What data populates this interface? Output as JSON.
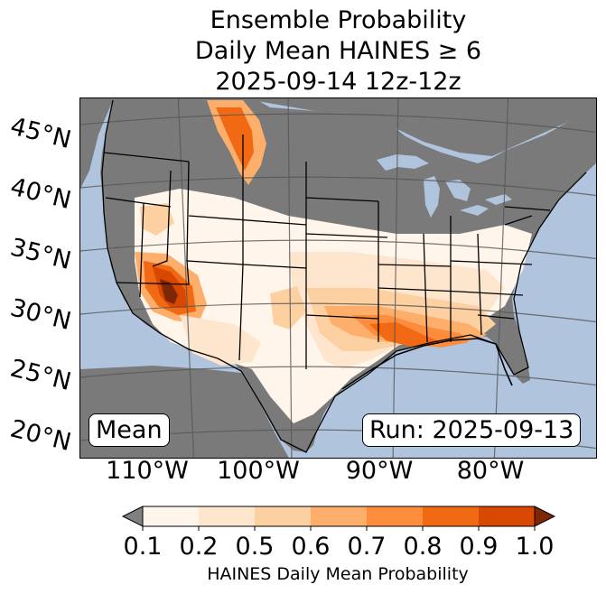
{
  "title": {
    "line1": "Ensemble Probability",
    "line2": "Daily Mean HAINES ≥ 6",
    "line3": "2025-09-14 12z-12z"
  },
  "map": {
    "lat_labels": [
      "45°N",
      "40°N",
      "35°N",
      "30°N",
      "25°N",
      "20°N"
    ],
    "lon_labels": [
      "110°W",
      "100°W",
      "90°W",
      "80°W"
    ],
    "stat_label": "Mean",
    "run_label": "Run: 2025-09-13",
    "colors": {
      "ocean": "#b0c4de",
      "land_below_threshold": "#7a7a7a",
      "boundaries": "#000000",
      "graticule": "#555555"
    }
  },
  "colorbar": {
    "label": "HAINES Daily Mean Probability",
    "ticks": [
      "0.1",
      "0.2",
      "0.5",
      "0.6",
      "0.7",
      "0.8",
      "0.9",
      "1.0"
    ],
    "under_color": "#808080",
    "over_color": "#7f2704",
    "bins": [
      {
        "from": 0.1,
        "to": 0.2,
        "color": "#fff5eb"
      },
      {
        "from": 0.2,
        "to": 0.5,
        "color": "#fee6ce"
      },
      {
        "from": 0.5,
        "to": 0.6,
        "color": "#fdd0a2"
      },
      {
        "from": 0.6,
        "to": 0.7,
        "color": "#fdae6b"
      },
      {
        "from": 0.7,
        "to": 0.8,
        "color": "#fd8d3c"
      },
      {
        "from": 0.8,
        "to": 0.9,
        "color": "#f16913"
      },
      {
        "from": 0.9,
        "to": 1.0,
        "color": "#d94801"
      }
    ]
  }
}
